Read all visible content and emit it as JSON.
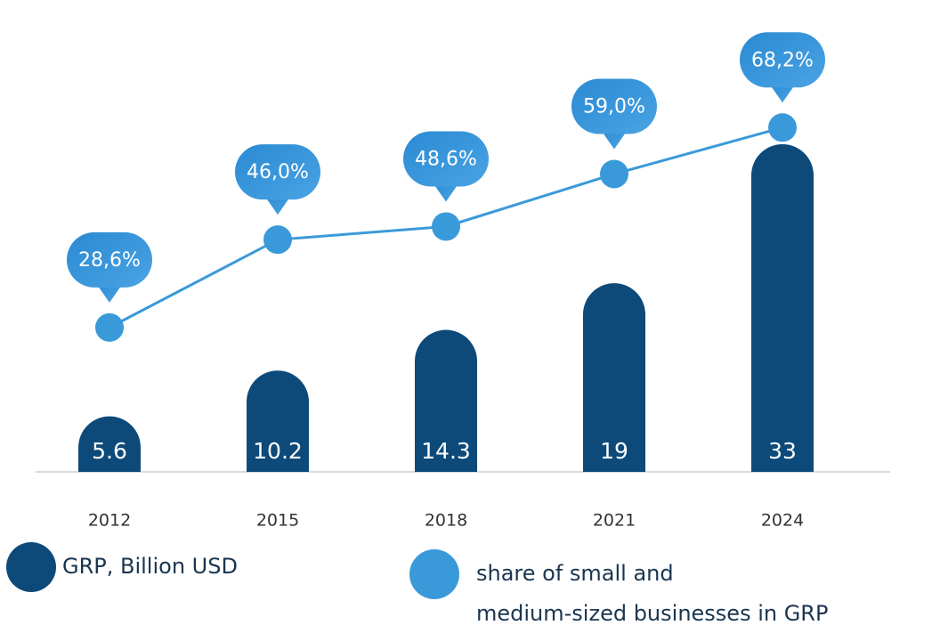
{
  "chart_data": {
    "type": "bar",
    "categories": [
      "2012",
      "2015",
      "2018",
      "2021",
      "2024"
    ],
    "series": [
      {
        "name": "GRP, Billion USD",
        "color": "#0d4a7a",
        "values": [
          5.6,
          10.2,
          14.3,
          19,
          33
        ]
      },
      {
        "name": "share of small and medium-sized businesses in GRP",
        "color": "#3a9ad9",
        "type": "line",
        "axis": "y2",
        "values": [
          28.6,
          46.0,
          48.6,
          59.0,
          68.2
        ],
        "value_labels": [
          "28,6%",
          "46,0%",
          "48,6%",
          "59,0%",
          "68,2%"
        ]
      }
    ]
  }
}
